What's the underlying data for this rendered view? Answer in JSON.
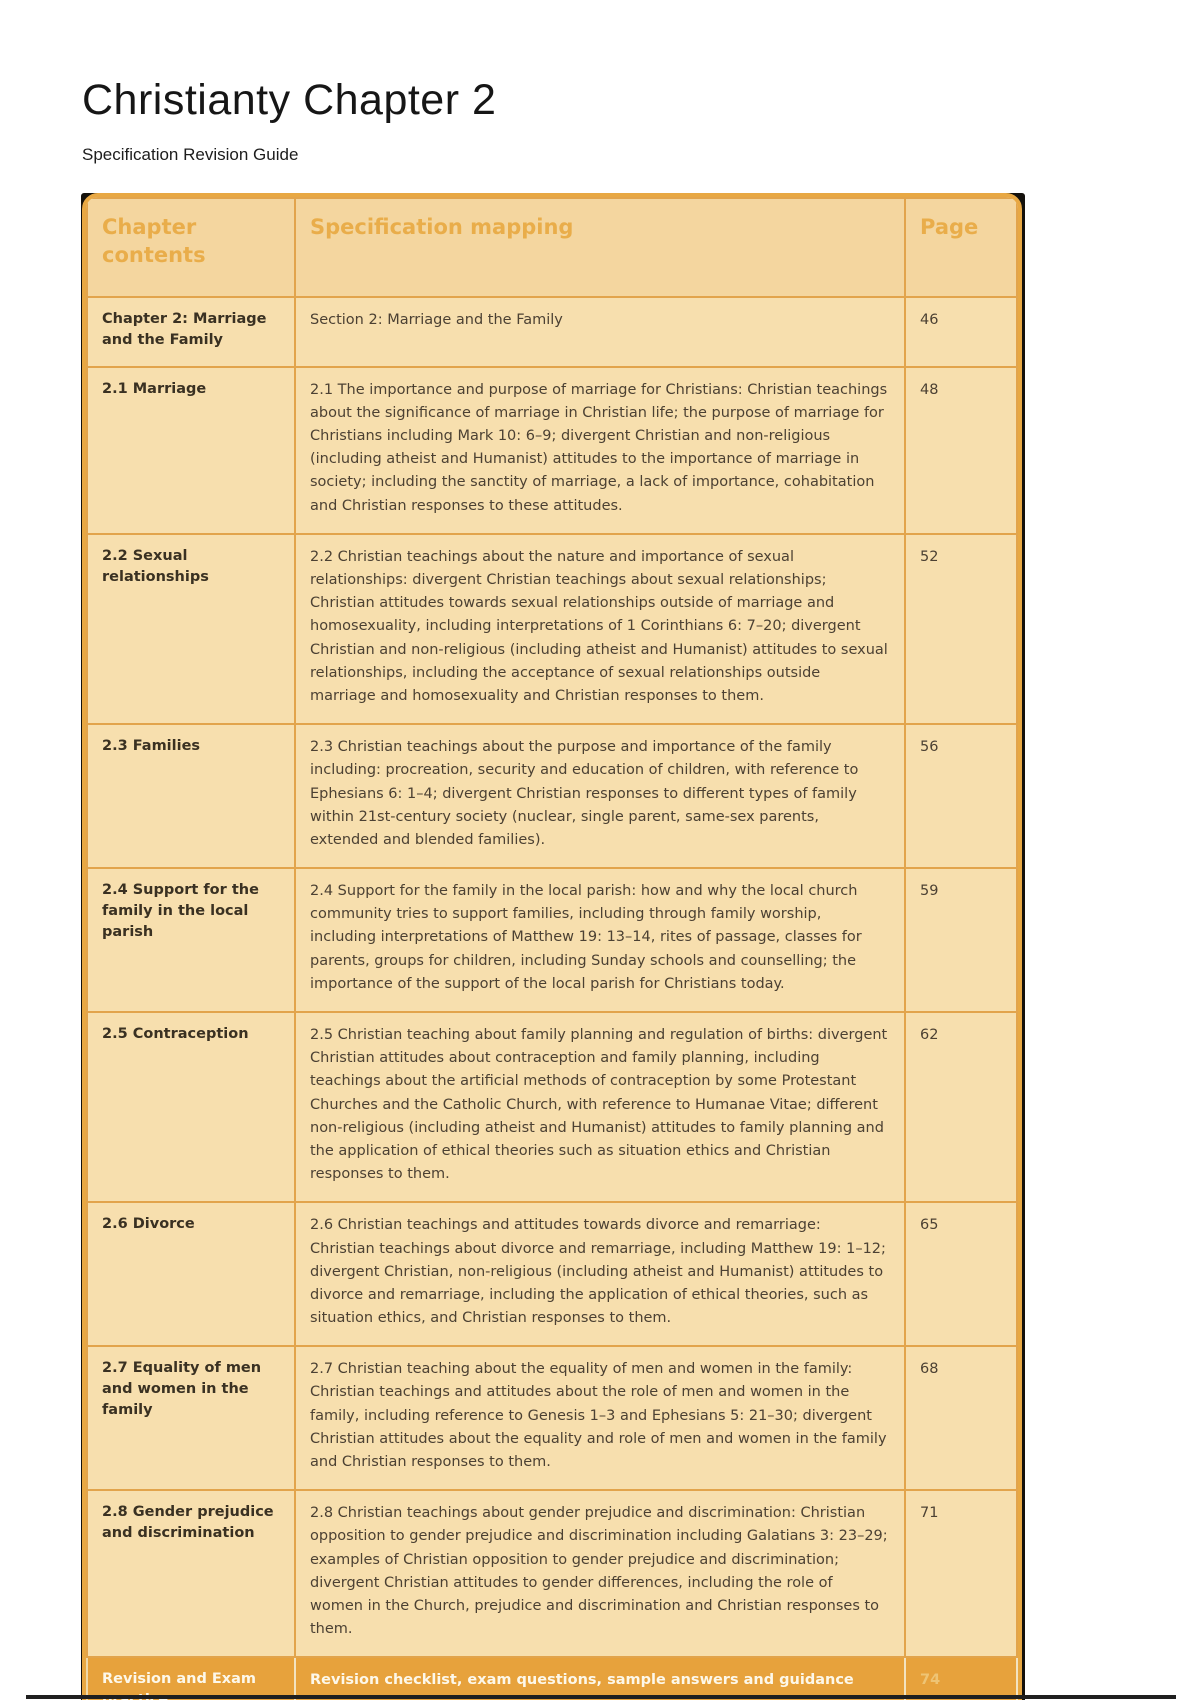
{
  "page": {
    "title": "Christianty Chapter 2",
    "subtitle": "Specification Revision Guide"
  },
  "colors": {
    "table_border": "#e8a843",
    "table_grid": "#e2a44c",
    "table_bg": "#f7dfae",
    "header_bg": "#f4d69f",
    "header_text": "#e9ad4a",
    "body_text": "#4c4133",
    "heading_text": "#3a3122",
    "highlight_bg": "#e7a23c",
    "highlight_text": "#fdf8ea",
    "highlight_page_text": "#eec475",
    "corner_shadow": "#14110c"
  },
  "table": {
    "columns": [
      "Chapter contents",
      "Specification mapping",
      "Page"
    ],
    "rows": [
      {
        "contents": "Chapter 2: Marriage and the Family",
        "mapping": "Section 2: Marriage and the Family",
        "page": "46",
        "highlight": false
      },
      {
        "contents": "2.1 Marriage",
        "mapping": "2.1 The importance and purpose of marriage for Christians: Christian teachings about the significance of marriage in Christian life; the purpose of marriage for Christians including Mark 10: 6–9; divergent Christian and non-religious (including atheist and Humanist) attitudes to the importance of marriage in society; including the sanctity of marriage, a lack of importance, cohabitation and Christian responses to these attitudes.",
        "page": "48",
        "highlight": false
      },
      {
        "contents": "2.2 Sexual relationships",
        "mapping": "2.2 Christian teachings about the nature and importance of sexual relationships: divergent Christian teachings about sexual relationships; Christian attitudes towards sexual relationships outside of marriage and homosexuality, including interpretations of 1 Corinthians 6: 7–20; divergent Christian and non-religious (including atheist and Humanist) attitudes to sexual relationships, including the acceptance of sexual relationships outside marriage and homosexuality and Christian responses to them.",
        "page": "52",
        "highlight": false
      },
      {
        "contents": "2.3 Families",
        "mapping": "2.3 Christian teachings about the purpose and importance of the family including: procreation, security and education of children, with reference to Ephesians 6: 1–4; divergent Christian responses to different types of family within 21st-century society (nuclear, single parent, same-sex parents, extended and blended families).",
        "page": "56",
        "highlight": false
      },
      {
        "contents": "2.4 Support for the family in the local parish",
        "mapping": "2.4 Support for the family in the local parish: how and why the local church community tries to support families, including through family worship, including interpretations of Matthew 19: 13–14, rites of passage, classes for parents, groups for children, including Sunday schools and counselling; the importance of the support of the local parish for Christians today.",
        "page": "59",
        "highlight": false
      },
      {
        "contents": "2.5 Contraception",
        "mapping": "2.5 Christian teaching about family planning and regulation of births: divergent Christian attitudes about contraception and family planning, including teachings about the artificial methods of contraception by some Protestant Churches and the Catholic Church, with reference to Humanae Vitae; different non-religious (including atheist and Humanist) attitudes to family planning and the application of ethical theories such as situation ethics and Christian responses to them.",
        "page": "62",
        "highlight": false
      },
      {
        "contents": "2.6 Divorce",
        "mapping": "2.6 Christian teachings and attitudes towards divorce and remarriage: Christian teachings about divorce and remarriage, including Matthew 19: 1–12; divergent Christian, non-religious (including atheist and Humanist) attitudes to divorce and remarriage, including the application of ethical theories, such as situation ethics, and Christian responses to them.",
        "page": "65",
        "highlight": false
      },
      {
        "contents": "2.7 Equality of men and women in the family",
        "mapping": "2.7 Christian teaching about the equality of men and women in the family: Christian teachings and attitudes about the role of men and women in the family, including reference to Genesis 1–3 and Ephesians 5: 21–30; divergent Christian attitudes about the equality and role of men and women in the family and Christian responses to them.",
        "page": "68",
        "highlight": false
      },
      {
        "contents": "2.8 Gender prejudice and discrimination",
        "mapping": "2.8 Christian teachings about gender prejudice and discrimination: Christian opposition to gender prejudice and discrimination including Galatians 3: 23–29; examples of Christian opposition to gender prejudice and discrimination; divergent Christian attitudes to gender differences, including the role of women in the Church, prejudice and discrimination and Christian responses to them.",
        "page": "71",
        "highlight": false
      },
      {
        "contents": "Revision and Exam practice",
        "mapping": "Revision checklist, exam questions, sample answers and guidance",
        "page": "74",
        "highlight": true
      }
    ]
  }
}
